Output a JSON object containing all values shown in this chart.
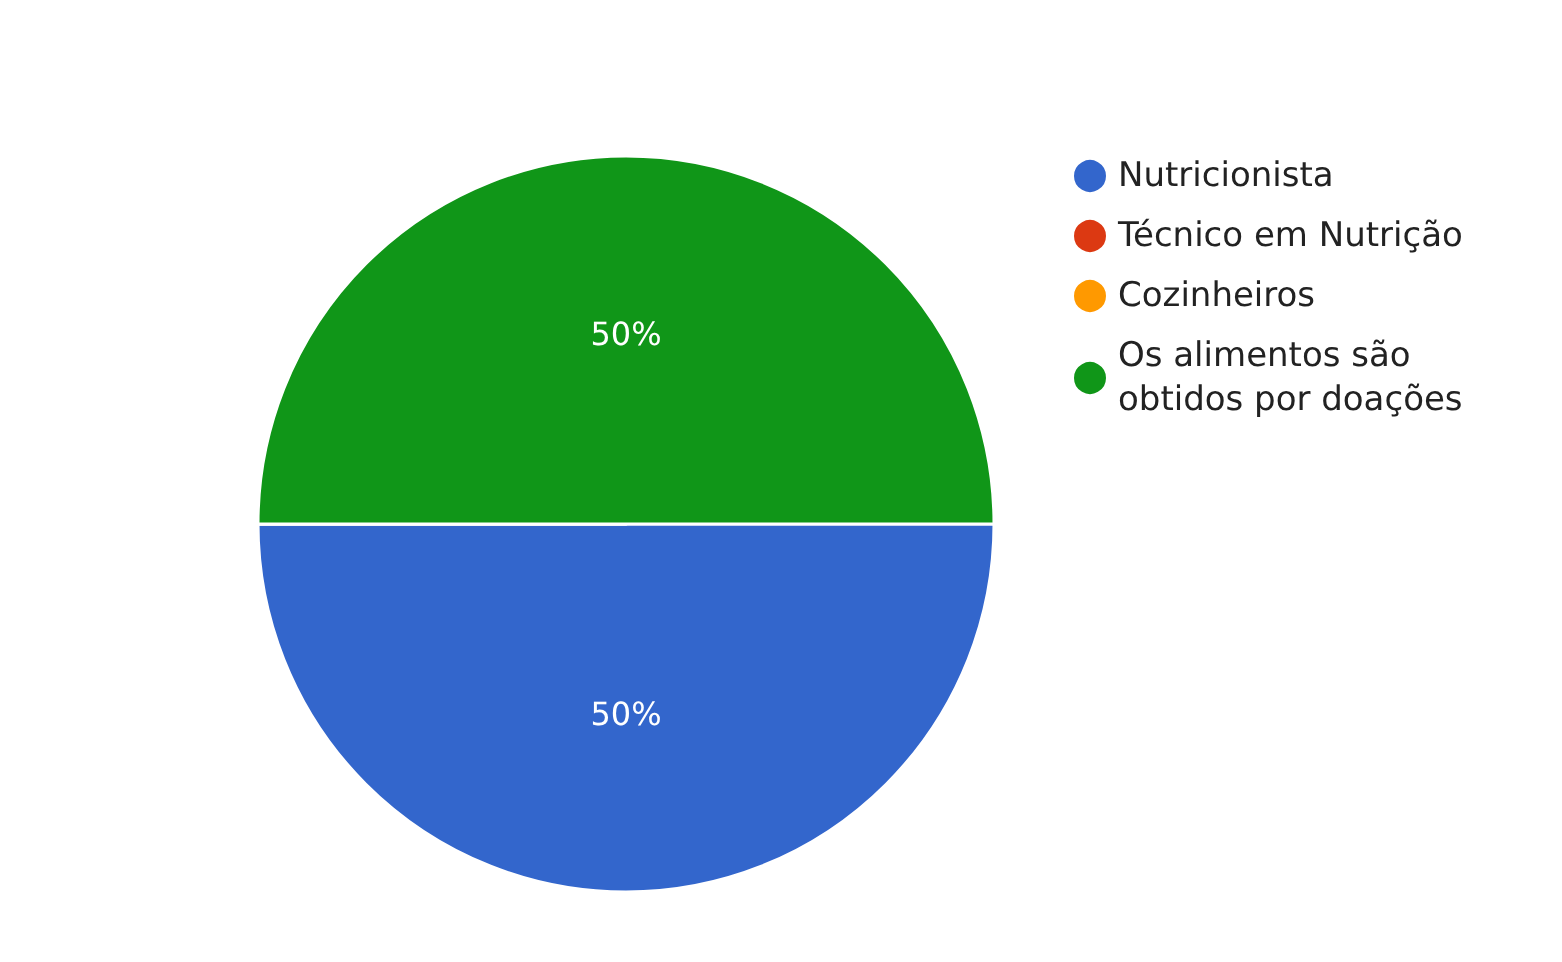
{
  "chart_data": {
    "type": "pie",
    "categories": [
      "Nutricionista",
      "Técnico em Nutrição",
      "Cozinheiros",
      "Os alimentos são obtidos por doações"
    ],
    "values": [
      50,
      0,
      0,
      50
    ],
    "value_labels": [
      "50%",
      null,
      null,
      "50%"
    ],
    "colors": [
      "#3366cc",
      "#dc3912",
      "#ff9900",
      "#109618"
    ],
    "legend": "right"
  }
}
